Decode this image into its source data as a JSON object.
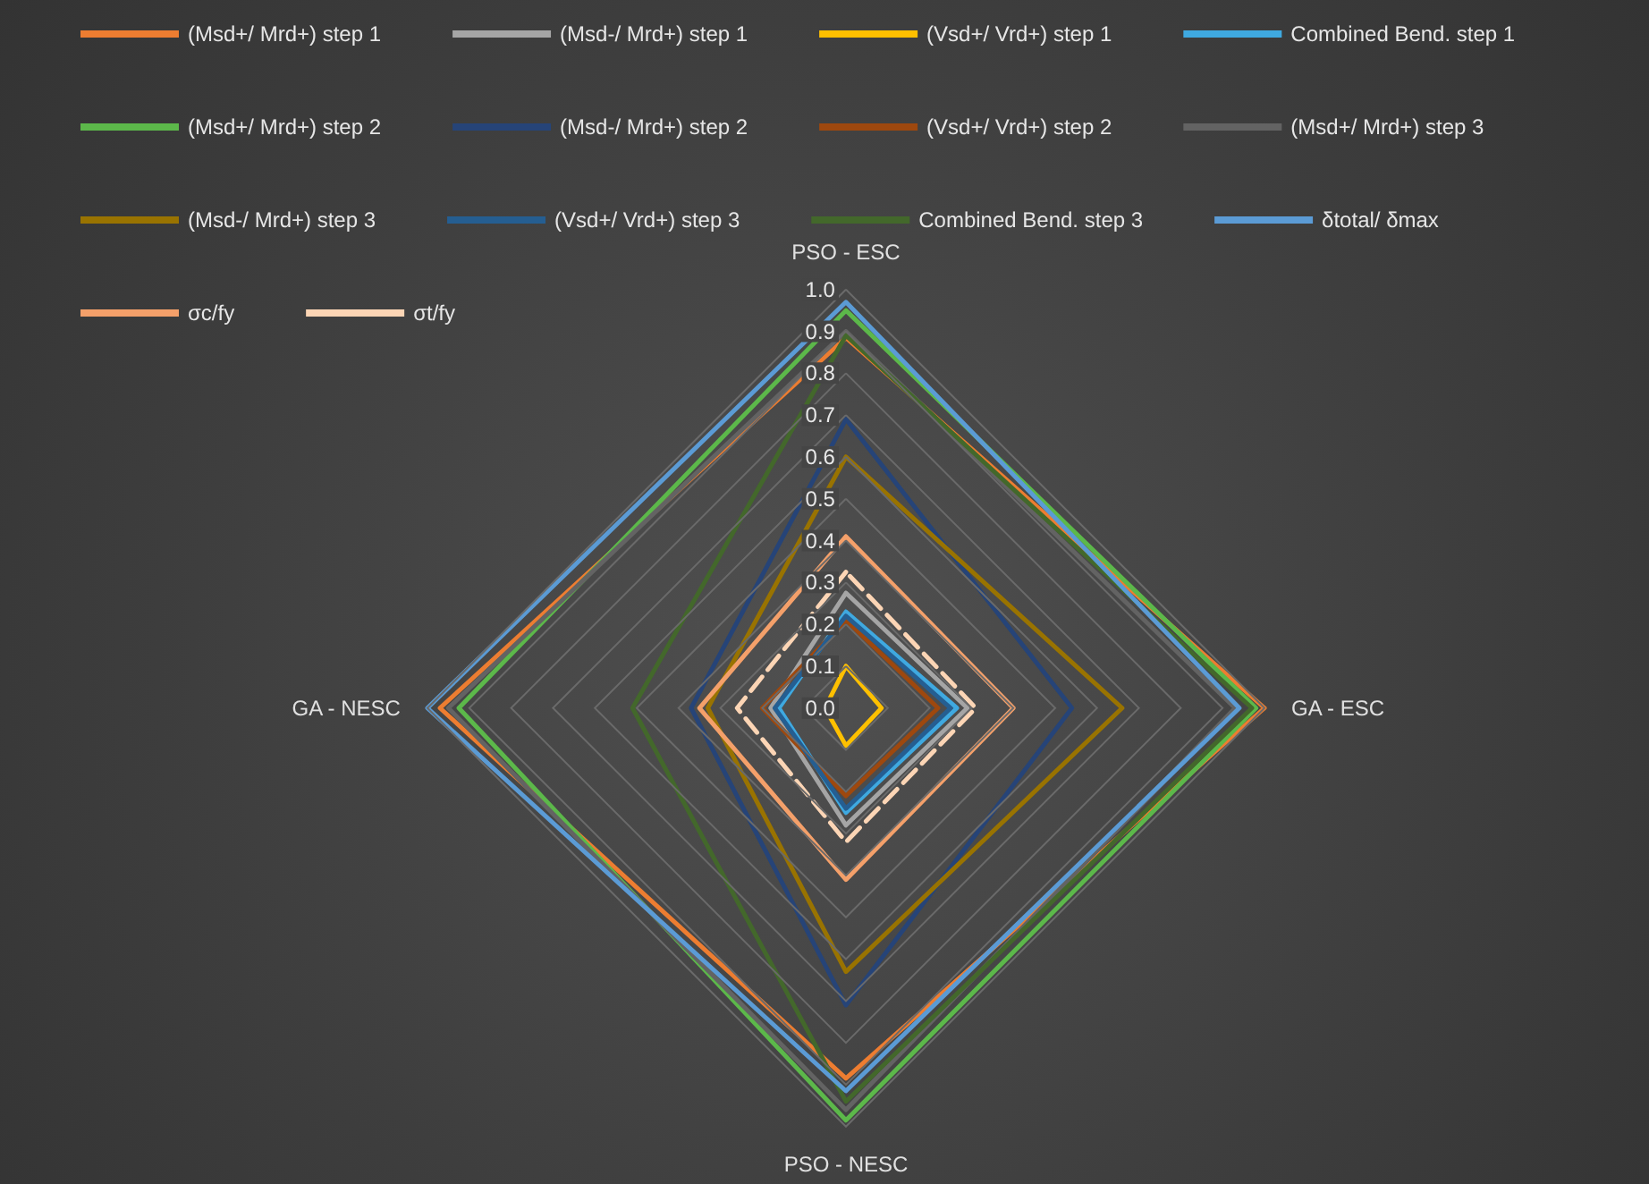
{
  "chart_data": {
    "type": "radar",
    "categories": [
      "PSO - ESC",
      "GA - ESC",
      "PSO - NESC",
      "GA - NESC"
    ],
    "ylim": [
      0,
      1
    ],
    "yticks": [
      {
        "value": 0,
        "label": "0.0"
      },
      {
        "value": 0.1,
        "label": "0.1"
      },
      {
        "value": 0.2,
        "label": "0.2"
      },
      {
        "value": 0.3,
        "label": "0.3"
      },
      {
        "value": 0.4,
        "label": "0.4"
      },
      {
        "value": 0.5,
        "label": "0.5"
      },
      {
        "value": 0.6,
        "label": "0.6"
      },
      {
        "value": 0.7,
        "label": "0.7"
      },
      {
        "value": 0.8,
        "label": "0.8"
      },
      {
        "value": 0.9,
        "label": "0.9"
      },
      {
        "value": 1,
        "label": "1.0"
      }
    ],
    "grid": true,
    "legend": "top",
    "marker": "none",
    "series": [
      {
        "name": "(Msd+/ Mrd+) step 1",
        "color": "#ed7d31",
        "values": [
          0.885,
          1.0,
          0.885,
          0.97
        ]
      },
      {
        "name": "(Msd-/ Mrd+) step 1",
        "color": "#a5a5a5",
        "values": [
          0.275,
          0.29,
          0.28,
          0.18
        ]
      },
      {
        "name": "(Vsd+/ Vrd+) step 1",
        "color": "#ffc000",
        "values": [
          0.1,
          0.085,
          0.09,
          0.05
        ]
      },
      {
        "name": "Combined Bend. step 1",
        "color": "#3fa9e0",
        "values": [
          0.23,
          0.265,
          0.25,
          0.16
        ]
      },
      {
        "name": "(Msd+/ Mrd+) step 2",
        "color": "#5cb84a",
        "values": [
          0.95,
          0.98,
          0.985,
          0.925
        ]
      },
      {
        "name": "(Msd-/ Mrd+) step 2",
        "color": "#264478",
        "values": [
          0.69,
          0.54,
          0.71,
          0.37
        ]
      },
      {
        "name": "(Vsd+/ Vrd+) step 2",
        "color": "#9e480e",
        "values": [
          0.21,
          0.22,
          0.21,
          0.2
        ]
      },
      {
        "name": "(Msd+/ Mrd+) step 3",
        "color": "#636363",
        "values": [
          0.9,
          0.93,
          0.96,
          0.95
        ]
      },
      {
        "name": "(Msd-/ Mrd+) step 3",
        "color": "#997300",
        "values": [
          0.6,
          0.66,
          0.63,
          0.33
        ]
      },
      {
        "name": "(Vsd+/ Vrd+) step 3",
        "color": "#255e91",
        "values": [
          0.22,
          0.25,
          0.24,
          0.17
        ]
      },
      {
        "name": "Combined Bend. step 3",
        "color": "#43682b",
        "values": [
          0.89,
          0.97,
          0.94,
          0.51
        ]
      },
      {
        "name": "δtotal/ δmax",
        "color": "#5b9bd5",
        "values": [
          0.97,
          0.94,
          0.915,
          1.0
        ]
      },
      {
        "name": "σc/fy",
        "color": "#f4a06a",
        "values": [
          0.41,
          0.4,
          0.41,
          0.35
        ]
      },
      {
        "name": "σt/fy",
        "color": "#fcd5b5",
        "values": [
          0.325,
          0.31,
          0.32,
          0.26
        ],
        "line_style": "dashed"
      }
    ]
  }
}
